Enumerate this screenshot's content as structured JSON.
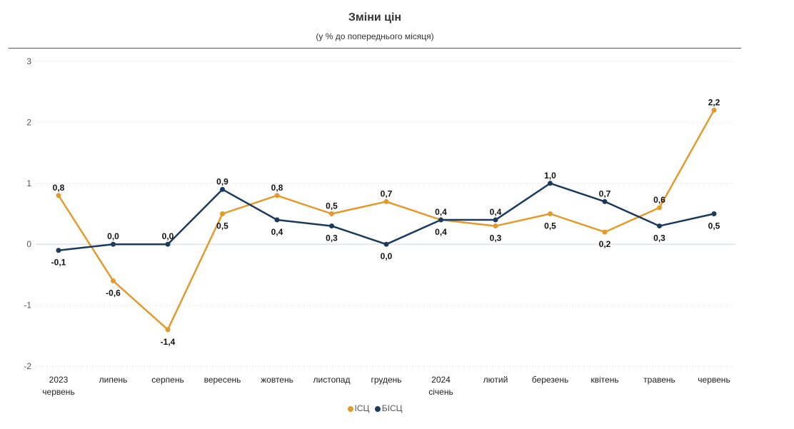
{
  "chart_data": {
    "type": "line",
    "title": "Зміни цін",
    "subtitle": "(у % до попереднього місяця)",
    "xlabel": "",
    "ylabel": "",
    "ylim": [
      -2,
      3
    ],
    "yticks": [
      "3",
      "2",
      "1",
      "0",
      "-1",
      "-2"
    ],
    "grid": true,
    "legend_position": "bottom",
    "categories": [
      [
        "2023",
        "червень"
      ],
      [
        "липень"
      ],
      [
        "серпень"
      ],
      [
        "вересень"
      ],
      [
        "жовтень"
      ],
      [
        "листопад"
      ],
      [
        "грудень"
      ],
      [
        "2024",
        "січень"
      ],
      [
        "лютий"
      ],
      [
        "березень"
      ],
      [
        "квітень"
      ],
      [
        "травень"
      ],
      [
        "червень"
      ]
    ],
    "series": [
      {
        "name": "ІСЦ",
        "color": "#E39A2B",
        "values": [
          0.8,
          -0.6,
          -1.4,
          0.5,
          0.8,
          0.5,
          0.7,
          0.4,
          0.3,
          0.5,
          0.2,
          0.6,
          2.2
        ],
        "labels": [
          "0,8",
          "-0,6",
          "-1,4",
          "0,5",
          "0,8",
          "0,5",
          "0,7",
          "0,4",
          "0,3",
          "0,5",
          "0,2",
          "0,6",
          "2,2"
        ]
      },
      {
        "name": "БІСЦ",
        "color": "#1B3A5C",
        "values": [
          -0.1,
          0.0,
          0.0,
          0.9,
          0.4,
          0.3,
          0.0,
          0.4,
          0.4,
          1.0,
          0.7,
          0.3,
          0.5
        ],
        "labels": [
          "-0,1",
          "0,0",
          "0,0",
          "0,9",
          "0,4",
          "0,3",
          "0,0",
          "0,4",
          "0,4",
          "1,0",
          "0,7",
          "0,3",
          "0,5"
        ]
      }
    ]
  }
}
